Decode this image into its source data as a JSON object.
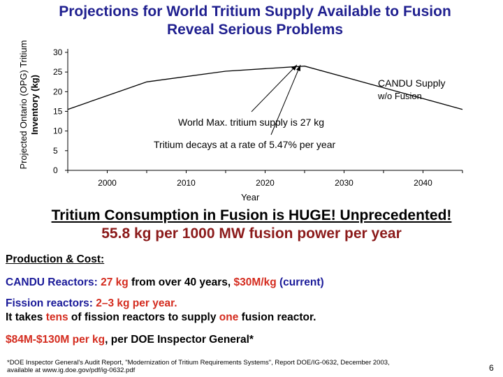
{
  "title_line1": "Projections for World Tritium Supply Available to Fusion",
  "title_line2": "Reveal Serious Problems",
  "chart_data": {
    "type": "line",
    "ylabel_line1": "Projected Ontario (OPG) Tritium",
    "ylabel_line2": "Inventory (kg)",
    "xlabel": "Year",
    "x_ticks": [
      "2000",
      "2010",
      "2020",
      "2030",
      "2040"
    ],
    "y_ticks": [
      "30",
      "25",
      "20",
      "15",
      "10",
      "5",
      "0"
    ],
    "ylim": [
      0,
      30
    ],
    "xlim": [
      1995,
      2045
    ],
    "series": [
      {
        "x": [
          1995,
          2005,
          2015,
          2025,
          2045
        ],
        "y": [
          15.5,
          22.5,
          25.2,
          26.5,
          15.5
        ]
      }
    ],
    "annotation_peak": "World Max. tritium supply is 27 kg",
    "annotation_decay": "Tritium decays at a rate of 5.47% per year",
    "annotation_candu_1": "CANDU Supply",
    "annotation_candu_2": "w/o Fusion",
    "grid": false
  },
  "consumption_line1": "Tritium Consumption in Fusion is HUGE! Unprecedented!",
  "consumption_line2": "55.8 kg per 1000 MW fusion power per year",
  "production_heading": "Production & Cost:",
  "candu": {
    "label": "CANDU Reactors: ",
    "amount": "27 kg",
    "mid": " from over 40 years, ",
    "cost": "$30M/kg",
    "end": " (current)"
  },
  "fission": {
    "label": "Fission reactors: ",
    "amount": "2–3 kg per year.",
    "line2_a": "It takes ",
    "tens": "tens",
    "line2_b": " of fission reactors to supply ",
    "one": "one",
    "line2_c": " fusion reactor."
  },
  "doe": {
    "cost": "$84M-$130M per kg",
    "rest": ", per DOE Inspector General*"
  },
  "footnote_line1": "*DOE Inspector General's Audit Report, \"Modernization of Tritium Requirements Systems\", Report DOE/IG-0632, December 2003,",
  "footnote_line2": "available at www.ig.doe.gov/pdf/ig-0632.pdf",
  "page_number": "6",
  "colors": {
    "title": "#1f1f8f",
    "accent_red": "#d42b1e",
    "dark_red": "#8b1a1a",
    "text_blue": "#1a1a99"
  }
}
